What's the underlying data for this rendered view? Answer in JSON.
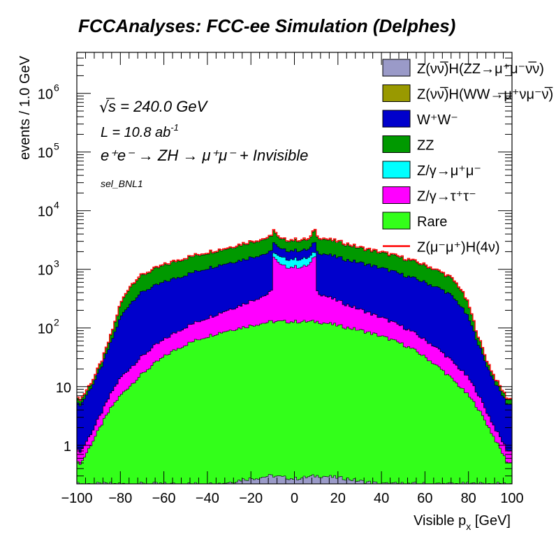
{
  "chart_data": {
    "type": "area",
    "title": "FCCAnalyses: FCC-ee Simulation (Delphes)",
    "xlabel": "Visible p",
    "xlabel_sub": "x",
    "xlabel_unit": " [GeV]",
    "ylabel": "events / 1.0 GeV",
    "xlim": [
      -100,
      100
    ],
    "ylim": [
      0.22,
      5000000
    ],
    "y_log": true,
    "x_ticks": [
      -100,
      -80,
      -60,
      -40,
      -20,
      0,
      20,
      40,
      60,
      80,
      100
    ],
    "x_tick_labels": [
      "−100",
      "−80",
      "−60",
      "−40",
      "−20",
      "0",
      "20",
      "40",
      "60",
      "80",
      "100"
    ],
    "y_ticks": [
      {
        "value": 1,
        "base": "1",
        "exp": ""
      },
      {
        "value": 10,
        "base": "10",
        "exp": ""
      },
      {
        "value": 100,
        "base": "10",
        "exp": "2"
      },
      {
        "value": 1000,
        "base": "10",
        "exp": "3"
      },
      {
        "value": 10000,
        "base": "10",
        "exp": "4"
      },
      {
        "value": 100000,
        "base": "10",
        "exp": "5"
      },
      {
        "value": 1000000,
        "base": "10",
        "exp": "6"
      }
    ],
    "annotations": {
      "sqrt_s": "s = 240.0 GeV",
      "lumi": "L = 10.8 ab",
      "lumi_exp": "-1",
      "process": "e⁺e⁻ → ZH → μ⁺μ⁻ + Invisible",
      "selection": "sel_BNL1"
    },
    "stack_order": [
      "Z(νν̅)H(ZZ→μ⁺μ⁻ν̅ν)",
      "Rare",
      "Z/γ→τ⁺τ⁻",
      "Z/γ→μ⁺μ⁻",
      "ZZ",
      "W⁺W⁻",
      "Z(νν̅)H(WW→μ⁺νμ⁻ν̅)"
    ],
    "x_centers": [
      -98,
      -92,
      -88,
      -84,
      -80,
      -76,
      -72,
      -68,
      -64,
      -60,
      -56,
      -52,
      -48,
      -44,
      -40,
      -36,
      -32,
      -28,
      -24,
      -20,
      -16,
      -12,
      -10.5,
      -9.5,
      -7,
      -4,
      -1,
      1,
      4,
      7,
      9.5,
      10.5,
      12,
      16,
      20,
      24,
      28,
      32,
      36,
      40,
      44,
      48,
      52,
      56,
      60,
      64,
      68,
      72,
      76,
      80,
      84,
      88,
      92,
      98
    ],
    "series": [
      {
        "name": "Z(νν̅)H(ZZ→μ⁺μ⁻ν̅ν)",
        "color": "#9a9ac8",
        "cumulative": [
          0.22,
          0.22,
          0.22,
          0.22,
          0.22,
          0.22,
          0.22,
          0.22,
          0.22,
          0.22,
          0.22,
          0.22,
          0.22,
          0.22,
          0.22,
          0.22,
          0.23,
          0.24,
          0.26,
          0.27,
          0.28,
          0.3,
          0.3,
          0.3,
          0.29,
          0.28,
          0.27,
          0.27,
          0.28,
          0.29,
          0.3,
          0.3,
          0.3,
          0.29,
          0.28,
          0.27,
          0.25,
          0.24,
          0.23,
          0.22,
          0.22,
          0.22,
          0.22,
          0.22,
          0.22,
          0.22,
          0.22,
          0.22,
          0.22,
          0.22,
          0.22,
          0.22,
          0.22,
          0.22
        ]
      },
      {
        "name": "Rare",
        "color": "#33ff1a",
        "cumulative": [
          0.5,
          1.3,
          2.5,
          4.5,
          7,
          10,
          14,
          19,
          25,
          32,
          40,
          48,
          56,
          64,
          72,
          80,
          88,
          95,
          102,
          110,
          118,
          125,
          128,
          128,
          128,
          128,
          128,
          128,
          128,
          128,
          128,
          128,
          125,
          118,
          110,
          102,
          95,
          88,
          80,
          72,
          64,
          56,
          48,
          40,
          32,
          25,
          19,
          14,
          10,
          7,
          4.5,
          2.5,
          1.3,
          0.5
        ]
      },
      {
        "name": "Z/γ→τ⁺τ⁻",
        "color": "#ff00ff",
        "cumulative": [
          0.8,
          2,
          4,
          8,
          14,
          20,
          28,
          38,
          50,
          62,
          78,
          95,
          112,
          130,
          150,
          170,
          195,
          220,
          250,
          290,
          330,
          380,
          420,
          1700,
          1200,
          1100,
          1100,
          1100,
          1100,
          1200,
          1700,
          420,
          380,
          330,
          290,
          250,
          220,
          195,
          170,
          150,
          130,
          112,
          95,
          78,
          62,
          50,
          38,
          28,
          20,
          14,
          8,
          4,
          2,
          0.8
        ]
      },
      {
        "name": "Z/γ→μ⁺μ⁻",
        "color": "#00ffff",
        "cumulative": [
          0.8,
          2,
          4,
          8,
          14,
          20,
          28,
          38,
          50,
          62,
          78,
          95,
          112,
          130,
          150,
          170,
          195,
          220,
          250,
          290,
          330,
          380,
          420,
          2000,
          1600,
          1500,
          1500,
          1500,
          1500,
          1600,
          2000,
          420,
          380,
          330,
          290,
          250,
          220,
          195,
          170,
          150,
          130,
          112,
          95,
          78,
          62,
          50,
          38,
          28,
          20,
          14,
          8,
          4,
          2,
          0.8
        ]
      },
      {
        "name": "W⁺W⁻",
        "color": "#0000cc",
        "cumulative": [
          5,
          12,
          25,
          60,
          150,
          250,
          360,
          450,
          520,
          600,
          680,
          760,
          850,
          950,
          1050,
          1150,
          1250,
          1350,
          1450,
          1600,
          1750,
          1900,
          2000,
          3000,
          2200,
          2100,
          2100,
          2100,
          2100,
          2200,
          3000,
          2000,
          1900,
          1750,
          1600,
          1450,
          1350,
          1250,
          1150,
          1050,
          950,
          850,
          760,
          680,
          600,
          520,
          450,
          360,
          250,
          150,
          60,
          25,
          12,
          5
        ]
      },
      {
        "name": "ZZ",
        "color": "#009900",
        "cumulative": [
          6,
          14,
          30,
          80,
          250,
          480,
          700,
          850,
          1000,
          1150,
          1300,
          1450,
          1600,
          1750,
          1900,
          2050,
          2200,
          2400,
          2650,
          2900,
          3100,
          3400,
          3500,
          4800,
          3200,
          3100,
          3100,
          3100,
          3100,
          3200,
          4800,
          3500,
          3400,
          3100,
          2900,
          2650,
          2400,
          2200,
          2050,
          1900,
          1750,
          1600,
          1450,
          1300,
          1150,
          1000,
          850,
          700,
          480,
          250,
          80,
          30,
          14,
          6
        ]
      },
      {
        "name": "Z(νν̅)H(WW→μ⁺νμ⁻ν̅)",
        "color": "#999900",
        "cumulative": [
          6,
          14,
          30,
          80,
          250,
          480,
          700,
          850,
          1000,
          1150,
          1300,
          1450,
          1600,
          1750,
          1900,
          2050,
          2200,
          2400,
          2650,
          2900,
          3100,
          3400,
          3500,
          4800,
          3200,
          3100,
          3100,
          3100,
          3100,
          3200,
          4800,
          3500,
          3400,
          3100,
          2900,
          2650,
          2400,
          2200,
          2050,
          1900,
          1750,
          1600,
          1450,
          1300,
          1150,
          1000,
          850,
          700,
          480,
          250,
          80,
          30,
          14,
          6
        ]
      }
    ],
    "signal": {
      "name": "Z(μ⁻μ⁺)H(4ν)",
      "color": "#ff0000"
    },
    "legend": {
      "position": "top-right",
      "entries": [
        {
          "label": "Z(νν̅)H(ZZ→μ⁺μ⁻ν̅ν)",
          "color": "#9a9ac8",
          "kind": "box"
        },
        {
          "label": "Z(νν̅)H(WW→μ⁺νμ⁻ν̅)",
          "color": "#999900",
          "kind": "box"
        },
        {
          "label": "W⁺W⁻",
          "color": "#0000cc",
          "kind": "box"
        },
        {
          "label": "ZZ",
          "color": "#009900",
          "kind": "box"
        },
        {
          "label": "Z/γ→μ⁺μ⁻",
          "color": "#00ffff",
          "kind": "box"
        },
        {
          "label": "Z/γ→τ⁺τ⁻",
          "color": "#ff00ff",
          "kind": "box"
        },
        {
          "label": "Rare",
          "color": "#33ff1a",
          "kind": "box"
        },
        {
          "label": "Z(μ⁻μ⁺)H(4ν)",
          "color": "#ff0000",
          "kind": "line"
        }
      ]
    },
    "grid": false
  }
}
